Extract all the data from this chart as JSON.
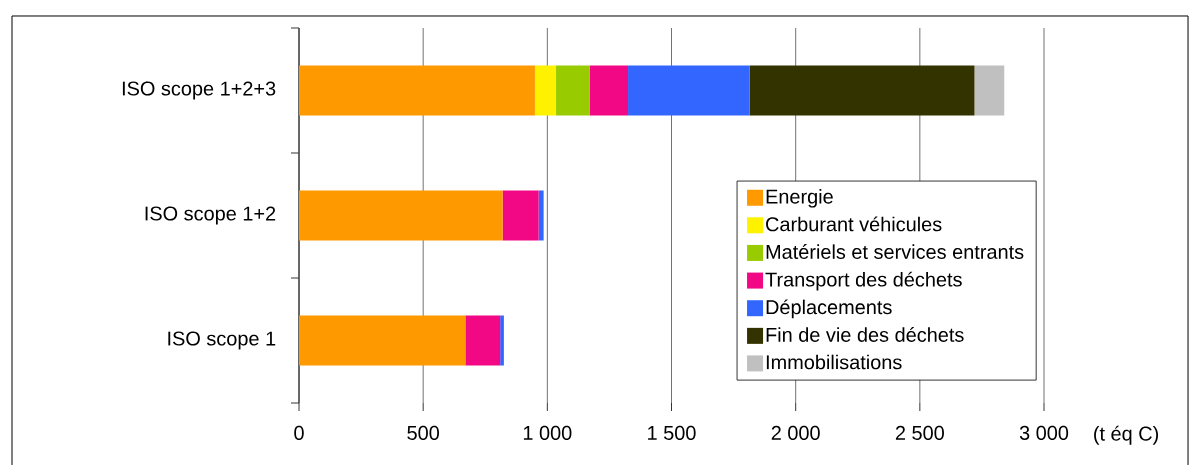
{
  "chart_data": {
    "type": "bar",
    "orientation": "horizontal",
    "stacked": true,
    "xlabel": "(t éq C)",
    "categories": [
      "ISO scope 1+2+3",
      "ISO scope 1+2",
      "ISO scope 1"
    ],
    "series": [
      {
        "name": "Energie",
        "color": "#ff9900",
        "values": [
          950,
          820,
          670
        ]
      },
      {
        "name": "Carburant véhicules",
        "color": "#fff200",
        "values": [
          85,
          0,
          0
        ]
      },
      {
        "name": "Matériels et services entrants",
        "color": "#99cc00",
        "values": [
          135,
          0,
          0
        ]
      },
      {
        "name": "Transport des déchets",
        "color": "#f20884",
        "values": [
          155,
          145,
          140
        ]
      },
      {
        "name": "Déplacements",
        "color": "#3366ff",
        "values": [
          490,
          20,
          15
        ]
      },
      {
        "name": "Fin de vie des déchets",
        "color": "#333300",
        "values": [
          905,
          0,
          0
        ]
      },
      {
        "name": "Immobilisations",
        "color": "#c0c0c0",
        "values": [
          120,
          0,
          0
        ]
      }
    ],
    "xlim": [
      0,
      3000
    ],
    "xticks": [
      0,
      500,
      {
        "value": 1000,
        "label": "1 000"
      },
      {
        "value": 1500,
        "label": "1 500"
      },
      {
        "value": 2000,
        "label": "2 000"
      },
      {
        "value": 2500,
        "label": "2 500"
      },
      {
        "value": 3000,
        "label": "3 000"
      }
    ],
    "grid": "x",
    "legend": "bottom right"
  }
}
